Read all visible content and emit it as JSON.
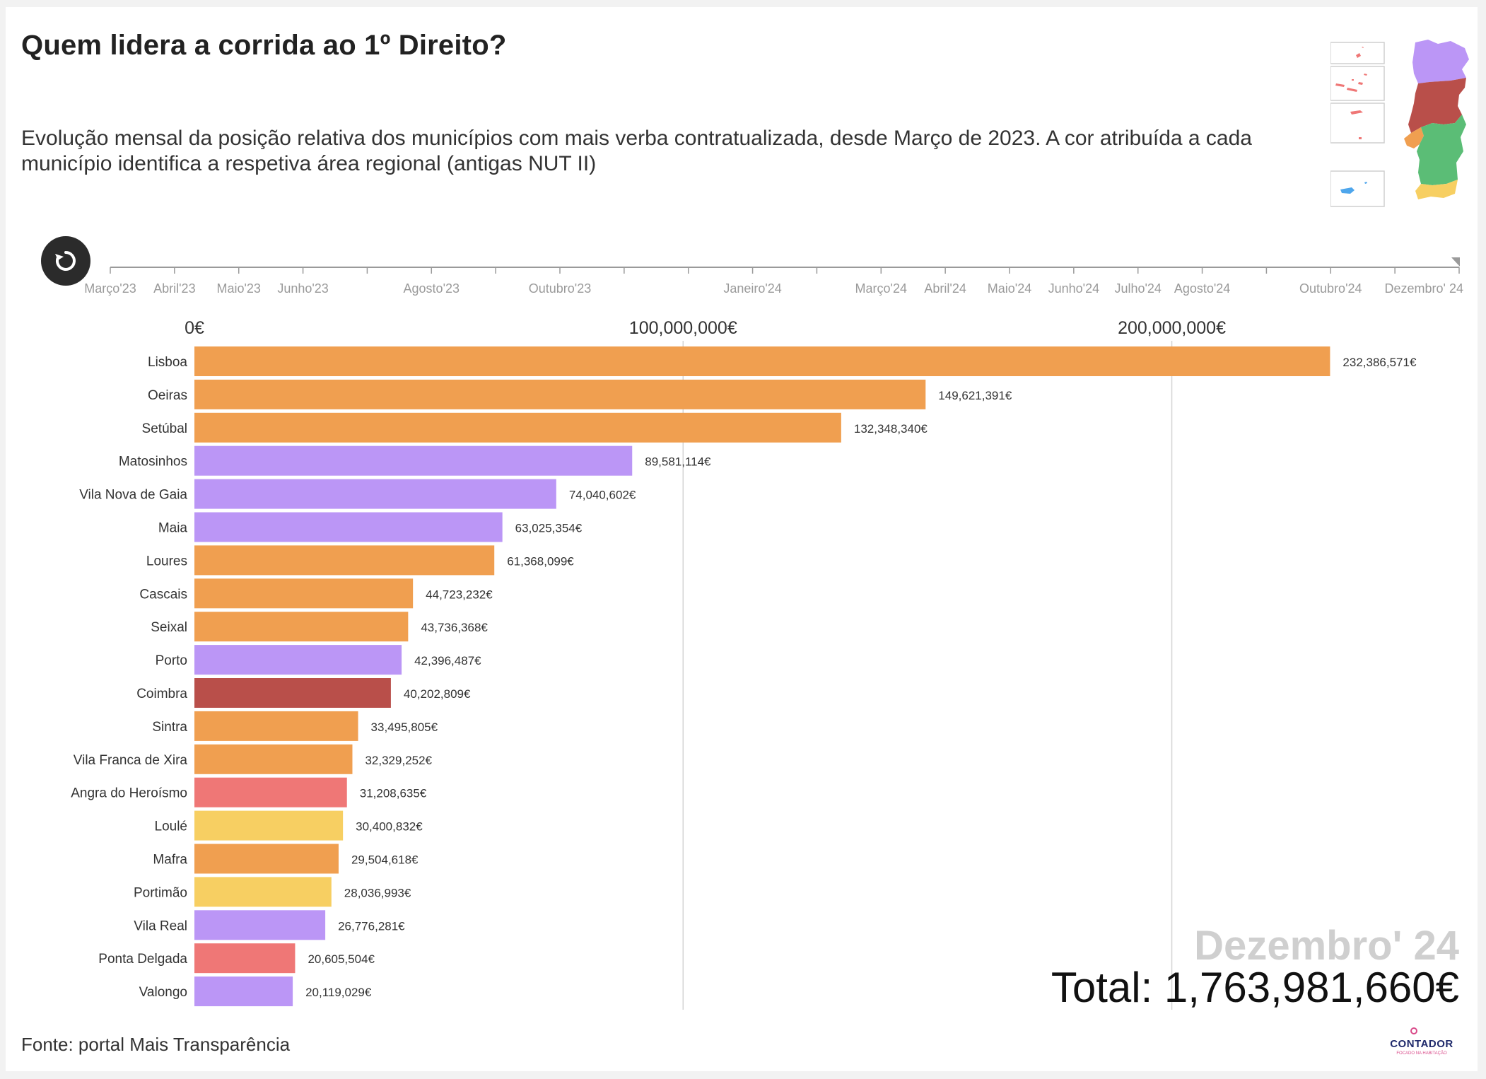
{
  "header": {
    "title": "Quem lidera a corrida ao 1º Direito?",
    "subtitle": "Evolução mensal da posição relativa dos municípios com mais verba contratualizada, desde Março de 2023. A cor atribuída a cada município identifica a respetiva área regional (antigas NUT II)"
  },
  "timeline": {
    "labels": [
      "Março'23",
      "Abril'23",
      "Maio'23",
      "Junho'23",
      "Agosto'23",
      "Outubro'23",
      "Janeiro'24",
      "Março'24",
      "Abril'24",
      "Maio'24",
      "Junho'24",
      "Julho'24",
      "Agosto'24",
      "Outubro'24",
      "Dezembro' 24"
    ],
    "month_index": [
      0,
      1,
      2,
      3,
      5,
      7,
      10,
      12,
      13,
      14,
      15,
      16,
      17,
      19,
      21
    ],
    "month_count": 22,
    "current_index": 21
  },
  "colors": {
    "lisboa": "#f09f50",
    "norte": "#bb96f6",
    "centro": "#b94f4a",
    "acores": "#ef7776",
    "algarve": "#f7cf62",
    "madeira": "#4ea6ec",
    "alentejo": "#5bbd76"
  },
  "chart_data": {
    "type": "bar",
    "orientation": "horizontal",
    "title": "Quem lidera a corrida ao 1º Direito?",
    "period": "Dezembro' 24",
    "xlim": [
      0,
      252000000
    ],
    "xticks": [
      0,
      100000000,
      200000000
    ],
    "xtick_labels": [
      "0€",
      "100,000,000€",
      "200,000,000€"
    ],
    "bars": [
      {
        "name": "Lisboa",
        "value": 232386571,
        "label": "232,386,571€",
        "region": "lisboa"
      },
      {
        "name": "Oeiras",
        "value": 149621391,
        "label": "149,621,391€",
        "region": "lisboa"
      },
      {
        "name": "Setúbal",
        "value": 132348340,
        "label": "132,348,340€",
        "region": "lisboa"
      },
      {
        "name": "Matosinhos",
        "value": 89581114,
        "label": "89,581,114€",
        "region": "norte"
      },
      {
        "name": "Vila Nova de Gaia",
        "value": 74040602,
        "label": "74,040,602€",
        "region": "norte"
      },
      {
        "name": "Maia",
        "value": 63025354,
        "label": "63,025,354€",
        "region": "norte"
      },
      {
        "name": "Loures",
        "value": 61368099,
        "label": "61,368,099€",
        "region": "lisboa"
      },
      {
        "name": "Cascais",
        "value": 44723232,
        "label": "44,723,232€",
        "region": "lisboa"
      },
      {
        "name": "Seixal",
        "value": 43736368,
        "label": "43,736,368€",
        "region": "lisboa"
      },
      {
        "name": "Porto",
        "value": 42396487,
        "label": "42,396,487€",
        "region": "norte"
      },
      {
        "name": "Coimbra",
        "value": 40202809,
        "label": "40,202,809€",
        "region": "centro"
      },
      {
        "name": "Sintra",
        "value": 33495805,
        "label": "33,495,805€",
        "region": "lisboa"
      },
      {
        "name": "Vila Franca de Xira",
        "value": 32329252,
        "label": "32,329,252€",
        "region": "lisboa"
      },
      {
        "name": "Angra do Heroísmo",
        "value": 31208635,
        "label": "31,208,635€",
        "region": "acores"
      },
      {
        "name": "Loulé",
        "value": 30400832,
        "label": "30,400,832€",
        "region": "algarve"
      },
      {
        "name": "Mafra",
        "value": 29504618,
        "label": "29,504,618€",
        "region": "lisboa"
      },
      {
        "name": "Portimão",
        "value": 28036993,
        "label": "28,036,993€",
        "region": "algarve"
      },
      {
        "name": "Vila Real",
        "value": 26776281,
        "label": "26,776,281€",
        "region": "norte"
      },
      {
        "name": "Ponta Delgada",
        "value": 20605504,
        "label": "20,605,504€",
        "region": "acores"
      },
      {
        "name": "Valongo",
        "value": 20119029,
        "label": "20,119,029€",
        "region": "norte"
      }
    ]
  },
  "period_display": {
    "month": "Dezembro' 24",
    "total": "Total: 1,763,981,660€"
  },
  "footer": {
    "source": "Fonte: portal Mais Transparência"
  },
  "logo": {
    "name": "CONTADOR",
    "tagline": "FOCADO NA HABITAÇÃO"
  }
}
